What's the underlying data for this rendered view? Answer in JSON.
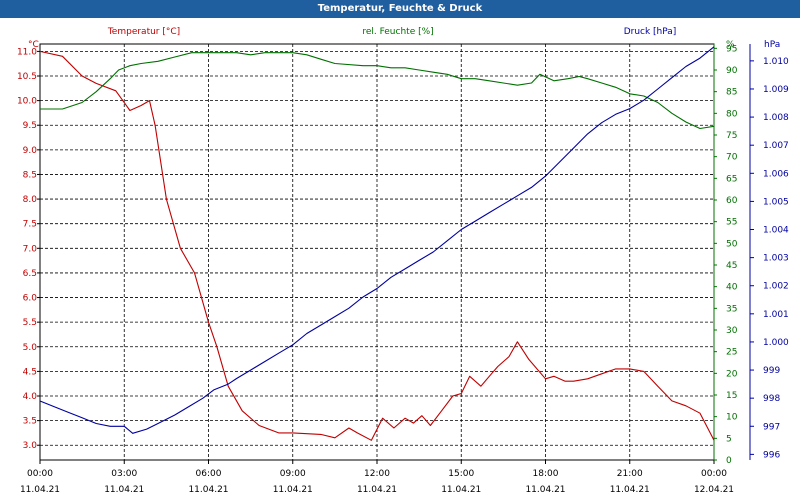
{
  "title": "Temperatur, Feuchte & Druck",
  "chart_data": {
    "type": "line",
    "title": "Temperatur, Feuchte & Druck",
    "x_labels": [
      {
        "time": "00:00",
        "date": "11.04.21"
      },
      {
        "time": "03:00",
        "date": "11.04.21"
      },
      {
        "time": "06:00",
        "date": "11.04.21"
      },
      {
        "time": "09:00",
        "date": "11.04.21"
      },
      {
        "time": "12:00",
        "date": "11.04.21"
      },
      {
        "time": "15:00",
        "date": "11.04.21"
      },
      {
        "time": "18:00",
        "date": "11.04.21"
      },
      {
        "time": "21:00",
        "date": "11.04.21"
      },
      {
        "time": "00:00",
        "date": "12.04.21"
      }
    ],
    "xlim_hours": [
      0,
      24
    ],
    "axes": {
      "temperature": {
        "label": "Temperatur [°C]",
        "unit": "°C",
        "color": "#c00000",
        "ylim": [
          2.7,
          11.15
        ],
        "ticks": [
          "3.0",
          "3.5",
          "4.0",
          "4.5",
          "5.0",
          "5.5",
          "6.0",
          "6.5",
          "7.0",
          "7.5",
          "8.0",
          "8.5",
          "9.0",
          "9.5",
          "10.0",
          "10.5",
          "11.0"
        ]
      },
      "humidity": {
        "label": "rel. Feuchte [%]",
        "unit": "%",
        "color": "#007000",
        "ylim": [
          0,
          96
        ],
        "ticks": [
          "0",
          "5",
          "10",
          "15",
          "20",
          "25",
          "30",
          "35",
          "40",
          "45",
          "50",
          "55",
          "60",
          "65",
          "70",
          "75",
          "80",
          "85",
          "90",
          "95"
        ]
      },
      "pressure": {
        "label": "Druck [hPa]",
        "unit": "hPa",
        "color": "#0000a0",
        "ylim": [
          995.8,
          1010.6
        ],
        "ticks": [
          "996",
          "997",
          "998",
          "999",
          "1.000",
          "1.001",
          "1.002",
          "1.003",
          "1.004",
          "1.005",
          "1.006",
          "1.007",
          "1.008",
          "1.009",
          "1.010"
        ]
      }
    },
    "series": [
      {
        "name": "Temperatur [°C]",
        "axis": "temperature",
        "color": "#c00000",
        "x": [
          0,
          0.8,
          1.5,
          2.0,
          2.7,
          3.2,
          3.6,
          3.9,
          4.1,
          4.5,
          5.0,
          5.5,
          6.0,
          6.3,
          6.7,
          7.2,
          7.8,
          8.5,
          9.0,
          10.0,
          10.5,
          11.0,
          11.3,
          11.8,
          12.2,
          12.6,
          13.0,
          13.3,
          13.6,
          13.9,
          14.3,
          14.7,
          15.0,
          15.3,
          15.7,
          16.0,
          16.3,
          16.7,
          17.0,
          17.4,
          18.0,
          18.3,
          18.7,
          19.0,
          19.5,
          20.0,
          20.5,
          21.0,
          21.5,
          22.0,
          22.5,
          23.0,
          23.5,
          24.0
        ],
        "values": [
          11.0,
          10.9,
          10.5,
          10.35,
          10.2,
          9.8,
          9.9,
          10.0,
          9.5,
          8.0,
          7.0,
          6.5,
          5.5,
          5.0,
          4.2,
          3.7,
          3.4,
          3.25,
          3.25,
          3.22,
          3.15,
          3.35,
          3.25,
          3.1,
          3.55,
          3.35,
          3.55,
          3.45,
          3.6,
          3.4,
          3.7,
          4.0,
          4.05,
          4.4,
          4.2,
          4.4,
          4.6,
          4.8,
          5.1,
          4.75,
          4.35,
          4.4,
          4.3,
          4.3,
          4.35,
          4.45,
          4.55,
          4.55,
          4.5,
          4.2,
          3.9,
          3.8,
          3.65,
          3.1
        ]
      },
      {
        "name": "rel. Feuchte [%]",
        "axis": "humidity",
        "color": "#007000",
        "x": [
          0,
          0.8,
          1.5,
          2.0,
          2.5,
          2.8,
          3.2,
          3.6,
          4.2,
          4.8,
          5.4,
          6.0,
          7.0,
          7.5,
          8.0,
          9.0,
          9.5,
          10.0,
          10.5,
          11.5,
          12.0,
          12.5,
          13.0,
          13.5,
          14.0,
          14.5,
          15.0,
          15.5,
          16.0,
          16.5,
          17.0,
          17.5,
          17.8,
          18.3,
          18.8,
          19.2,
          19.5,
          20.0,
          20.5,
          21.0,
          21.5,
          22.0,
          22.5,
          23.0,
          23.5,
          24.0
        ],
        "values": [
          81.0,
          81.0,
          82.5,
          85.0,
          88.0,
          90.0,
          91.0,
          91.5,
          92.0,
          93.0,
          94.0,
          94.0,
          94.0,
          93.5,
          94.0,
          94.0,
          93.5,
          92.5,
          91.5,
          91.0,
          91.0,
          90.5,
          90.5,
          90.0,
          89.5,
          89.0,
          88.0,
          88.0,
          87.5,
          87.0,
          86.5,
          87.0,
          89.0,
          87.5,
          88.0,
          88.5,
          88.0,
          87.0,
          86.0,
          84.5,
          84.0,
          82.5,
          80.0,
          78.0,
          76.5,
          77.0
        ]
      },
      {
        "name": "Druck [hPa]",
        "axis": "pressure",
        "color": "#0000a0",
        "x": [
          0,
          0.5,
          1.0,
          1.5,
          2.0,
          2.5,
          3.0,
          3.3,
          3.8,
          4.2,
          4.8,
          5.3,
          5.8,
          6.2,
          6.7,
          7.0,
          7.5,
          8.0,
          8.5,
          9.0,
          9.5,
          10.0,
          10.5,
          11.0,
          11.5,
          12.0,
          12.5,
          13.0,
          13.5,
          14.0,
          14.5,
          15.0,
          15.5,
          16.0,
          16.5,
          17.0,
          17.5,
          18.0,
          18.5,
          19.0,
          19.5,
          20.0,
          20.5,
          21.0,
          21.5,
          22.0,
          22.5,
          23.0,
          23.5,
          24.0
        ],
        "values": [
          997.9,
          997.7,
          997.5,
          997.3,
          997.1,
          997.0,
          997.0,
          996.75,
          996.9,
          997.1,
          997.4,
          997.7,
          998.0,
          998.3,
          998.5,
          998.7,
          999.0,
          999.3,
          999.6,
          999.9,
          1000.3,
          1000.6,
          1000.9,
          1001.2,
          1001.6,
          1001.9,
          1002.3,
          1002.6,
          1002.9,
          1003.2,
          1003.6,
          1004.0,
          1004.3,
          1004.6,
          1004.9,
          1005.2,
          1005.5,
          1005.9,
          1006.4,
          1006.9,
          1007.4,
          1007.8,
          1008.1,
          1008.3,
          1008.6,
          1009.0,
          1009.4,
          1009.8,
          1010.1,
          1010.5
        ]
      }
    ]
  }
}
